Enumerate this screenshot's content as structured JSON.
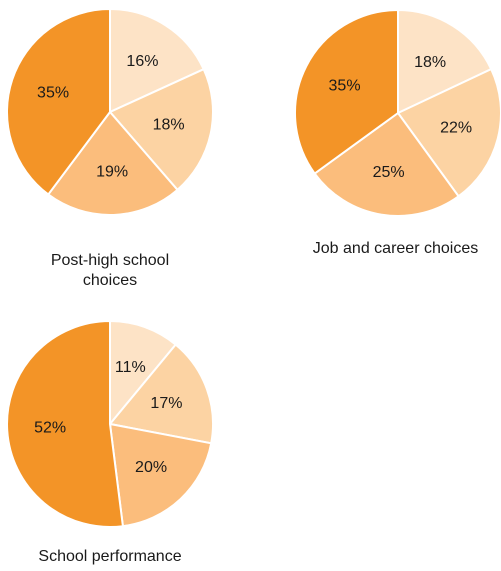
{
  "chart_data": [
    {
      "type": "pie",
      "title": "Post-high school\nchoices",
      "slices": [
        {
          "label": "16%",
          "value": 16,
          "color": "#fde3c6"
        },
        {
          "label": "18%",
          "value": 18,
          "color": "#fcd3a3"
        },
        {
          "label": "19%",
          "value": 19,
          "color": "#fbbd7c"
        },
        {
          "label": "35%",
          "value": 35,
          "color": "#f39427"
        }
      ]
    },
    {
      "type": "pie",
      "title": "Job and career choices",
      "slices": [
        {
          "label": "18%",
          "value": 18,
          "color": "#fde3c6"
        },
        {
          "label": "22%",
          "value": 22,
          "color": "#fcd3a3"
        },
        {
          "label": "25%",
          "value": 25,
          "color": "#fbbd7c"
        },
        {
          "label": "35%",
          "value": 35,
          "color": "#f39427"
        }
      ]
    },
    {
      "type": "pie",
      "title": "School performance",
      "slices": [
        {
          "label": "11%",
          "value": 11,
          "color": "#fde3c6"
        },
        {
          "label": "17%",
          "value": 17,
          "color": "#fcd3a3"
        },
        {
          "label": "20%",
          "value": 20,
          "color": "#fbbd7c"
        },
        {
          "label": "52%",
          "value": 52,
          "color": "#f39427"
        }
      ]
    }
  ]
}
